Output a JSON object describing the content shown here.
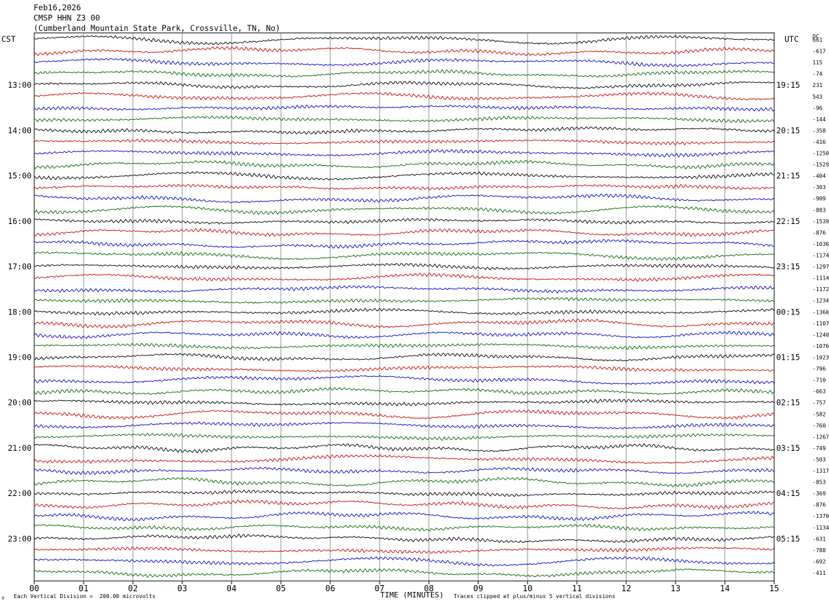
{
  "header": {
    "date": "Feb16,2026",
    "station": "CMSP HHN Z3 00",
    "location": "(Cumberland Mountain State Park, Crossville, TN, No)"
  },
  "left_timezone": "CST",
  "right_timezone": "UTC",
  "dc_header": "DC",
  "footer": {
    "scale_note": "Each Vertical Division =  200.00 microvolts",
    "clip_note": "Traces clipped at plus/minus 5 vertical divisions",
    "corner_mark": "∂"
  },
  "chart_data": {
    "type": "line",
    "subtype": "helicorder",
    "xlabel": "TIME (MINUTES)",
    "xlim": [
      0,
      15
    ],
    "x_ticks": [
      "00",
      "01",
      "02",
      "03",
      "04",
      "05",
      "06",
      "07",
      "08",
      "09",
      "10",
      "11",
      "12",
      "13",
      "14",
      "15"
    ],
    "trace_colors": [
      "#000000",
      "#cc0000",
      "#0000cc",
      "#006600"
    ],
    "left_hour_labels": [
      "13:00",
      "14:00",
      "15:00",
      "16:00",
      "17:00",
      "18:00",
      "19:00",
      "20:00",
      "21:00",
      "22:00",
      "23:00"
    ],
    "right_hour_labels": [
      "19:15",
      "20:15",
      "21:15",
      "22:15",
      "23:15",
      "00:15",
      "01:15",
      "02:15",
      "03:15",
      "04:15",
      "05:15"
    ],
    "hour_label_first_row": 4,
    "hour_label_every": 4,
    "dc_offsets": [
      "661",
      "-617",
      "115",
      "-74",
      "231",
      "543",
      "-96",
      "-144",
      "-358",
      "-416",
      "-1250",
      "-1529",
      "-404",
      "-303",
      "-909",
      "-883",
      "-1539",
      "-876",
      "-1036",
      "-1174",
      "-1297",
      "-1114",
      "-1172",
      "-1234",
      "-1360",
      "-1107",
      "-1240",
      "-1076",
      "-1023",
      "-796",
      "-710",
      "-663",
      "-757",
      "-582",
      "-760",
      "-1267",
      "-749",
      "-503",
      "-1317",
      "-853",
      "-369",
      "-876",
      "-1370",
      "-1134",
      "-631",
      "-788",
      "-692",
      "-411"
    ]
  }
}
